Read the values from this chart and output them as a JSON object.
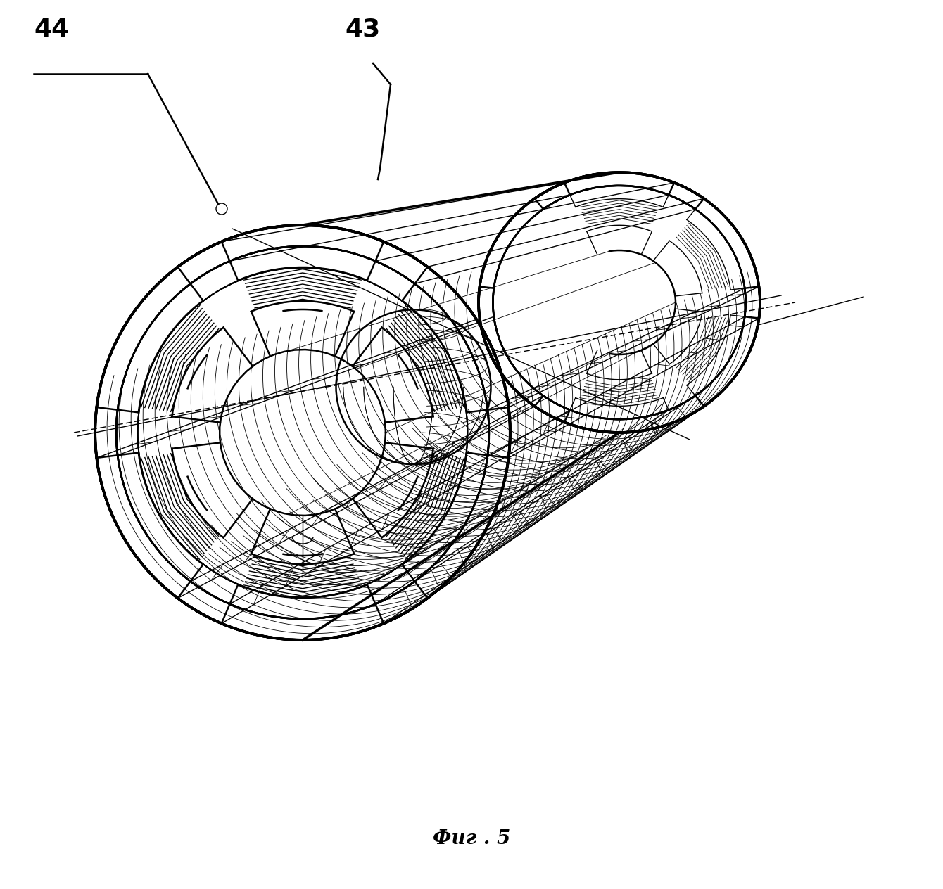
{
  "caption": "Фиг . 5",
  "label_44": "44",
  "label_43": "43",
  "bg_color": "#ffffff",
  "line_color": "#000000",
  "fig_width": 13.4,
  "fig_height": 12.64,
  "caption_fontsize": 20,
  "label_fontsize": 26
}
